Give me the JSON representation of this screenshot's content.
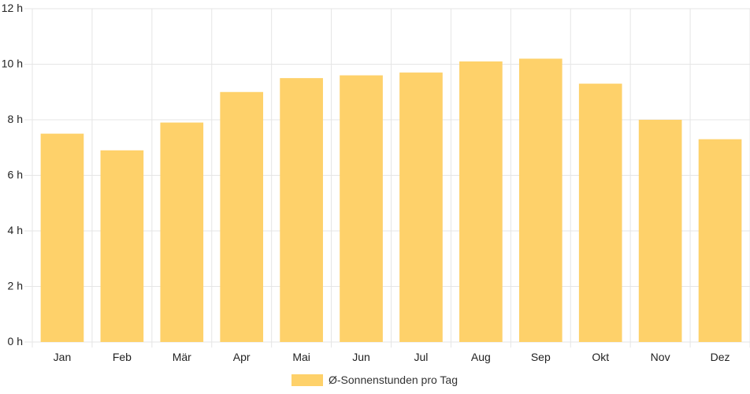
{
  "chart_data": {
    "type": "bar",
    "categories": [
      "Jan",
      "Feb",
      "Mär",
      "Apr",
      "Mai",
      "Jun",
      "Jul",
      "Aug",
      "Sep",
      "Okt",
      "Nov",
      "Dez"
    ],
    "series": [
      {
        "name": "Ø-Sonnenstunden pro Tag",
        "values": [
          7.5,
          6.9,
          7.9,
          9.0,
          9.5,
          9.6,
          9.7,
          10.1,
          10.2,
          9.3,
          8.0,
          7.3
        ],
        "color": "#fed16a"
      }
    ],
    "y_ticks": [
      "0 h",
      "2 h",
      "4 h",
      "6 h",
      "8 h",
      "10 h",
      "12 h"
    ],
    "ylim": [
      0,
      12
    ],
    "y_unit": "h",
    "grid": true,
    "legend_position": "bottom-center",
    "gridline_color": "#e5e5e5"
  }
}
